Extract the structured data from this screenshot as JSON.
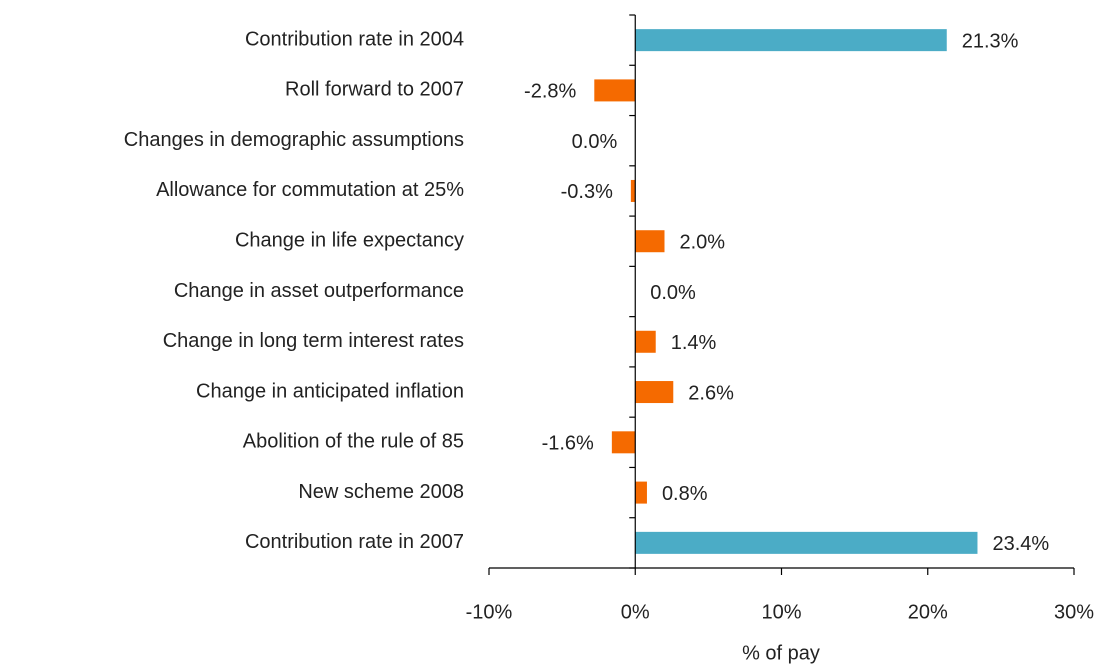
{
  "chart_data": {
    "type": "barh",
    "categories": [
      "Contribution rate in 2004",
      "Roll forward to 2007",
      "Changes in demographic assumptions",
      "Allowance for commutation at 25%",
      "Change in life expectancy",
      "Change in asset outperformance",
      "Change in long term interest rates",
      "Change in anticipated inflation",
      "Abolition of the rule of 85",
      "New scheme 2008",
      "Contribution rate in 2007"
    ],
    "values": [
      21.3,
      -2.8,
      -0.0,
      -0.3,
      2.0,
      0.0,
      1.4,
      2.6,
      -1.6,
      0.8,
      23.4
    ],
    "value_labels": [
      "21.3%",
      "-2.8%",
      "0.0%",
      "-0.3%",
      "2.0%",
      "0.0%",
      "1.4%",
      "2.6%",
      "-1.6%",
      "0.8%",
      "23.4%"
    ],
    "colors": [
      "#4bacc6",
      "#f56a00",
      "#f56a00",
      "#f56a00",
      "#f56a00",
      "#f56a00",
      "#f56a00",
      "#f56a00",
      "#f56a00",
      "#f56a00",
      "#4bacc6"
    ],
    "xlim": [
      -10,
      30
    ],
    "xticks": [
      {
        "value": -10,
        "label": "-10%"
      },
      {
        "value": 0,
        "label": "0%"
      },
      {
        "value": 10,
        "label": "10%"
      },
      {
        "value": 20,
        "label": "20%"
      },
      {
        "value": 30,
        "label": "30%"
      }
    ],
    "xlabel": "% of pay"
  }
}
